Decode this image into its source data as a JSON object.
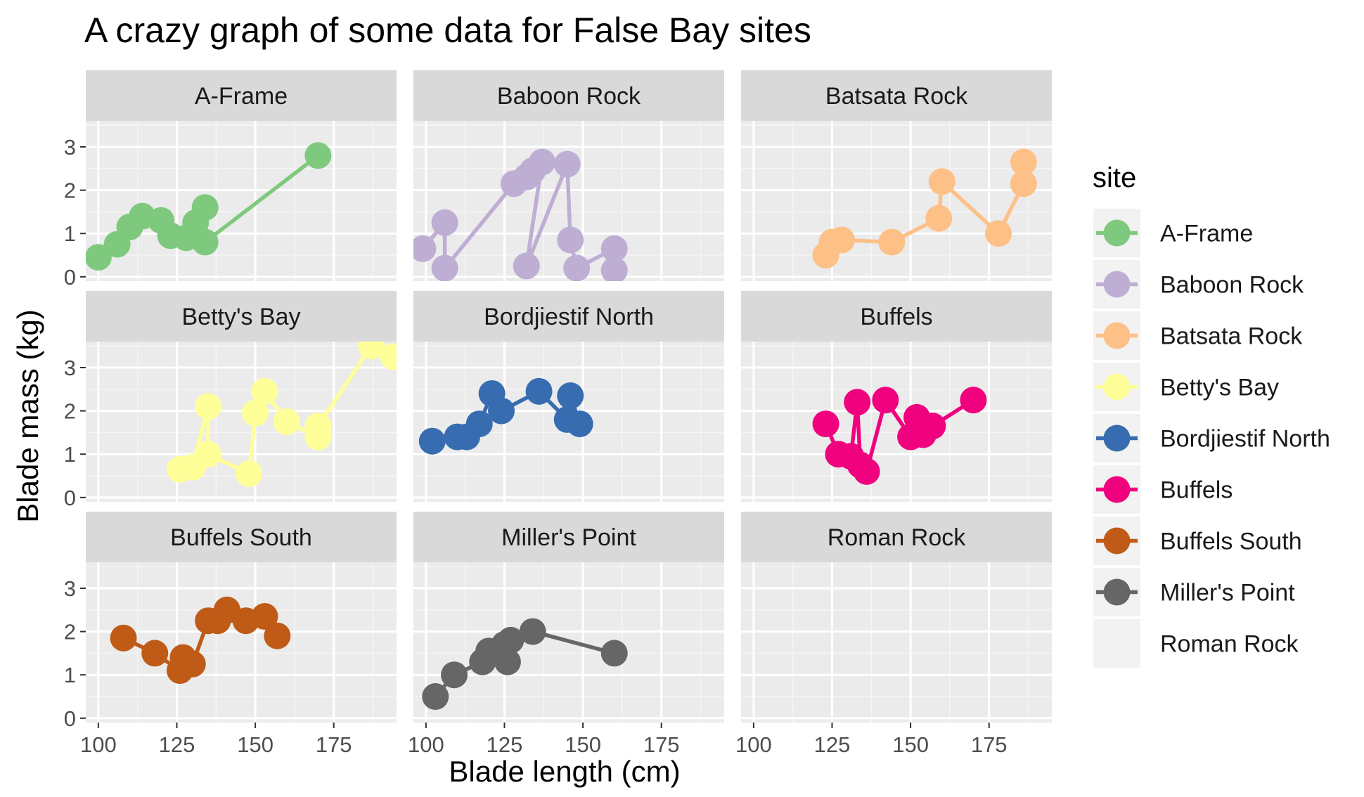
{
  "chart_data": {
    "type": "line",
    "title": "A crazy graph of some data for False Bay sites",
    "xlabel": "Blade length (cm)",
    "ylabel": "Blade mass (kg)",
    "xlim": [
      96,
      195
    ],
    "ylim": [
      -0.1,
      3.6
    ],
    "x_ticks": [
      100,
      125,
      150,
      175
    ],
    "y_ticks": [
      0,
      1,
      2,
      3
    ],
    "grid": true,
    "legend": {
      "title": "site",
      "position": "right"
    },
    "panels": [
      {
        "site": "A-Frame",
        "color": "#7fc97f",
        "points": [
          [
            100,
            0.45
          ],
          [
            106,
            0.75
          ],
          [
            110,
            1.15
          ],
          [
            114,
            1.4
          ],
          [
            120,
            1.3
          ],
          [
            123,
            0.95
          ],
          [
            128,
            0.9
          ],
          [
            131,
            1.25
          ],
          [
            134,
            1.6
          ],
          [
            134,
            0.8
          ],
          [
            170,
            2.8
          ]
        ]
      },
      {
        "site": "Baboon Rock",
        "color": "#beaed4",
        "points": [
          [
            99,
            0.65
          ],
          [
            106,
            1.25
          ],
          [
            106,
            0.2
          ],
          [
            128,
            2.15
          ],
          [
            132,
            2.3
          ],
          [
            134,
            2.45
          ],
          [
            137,
            2.65
          ],
          [
            132,
            0.25
          ],
          [
            145,
            2.6
          ],
          [
            146,
            0.85
          ],
          [
            148,
            0.2
          ],
          [
            160,
            0.65
          ],
          [
            160,
            0.15
          ]
        ]
      },
      {
        "site": "Batsata Rock",
        "color": "#fdc086",
        "points": [
          [
            123,
            0.5
          ],
          [
            125,
            0.8
          ],
          [
            128,
            0.85
          ],
          [
            144,
            0.8
          ],
          [
            159,
            1.35
          ],
          [
            160,
            2.2
          ],
          [
            178,
            1.0
          ],
          [
            186,
            2.15
          ],
          [
            186,
            2.65
          ]
        ]
      },
      {
        "site": "Betty's Bay",
        "color": "#ffff99",
        "points": [
          [
            126,
            0.65
          ],
          [
            130,
            0.7
          ],
          [
            135,
            2.1
          ],
          [
            135,
            1.0
          ],
          [
            148,
            0.55
          ],
          [
            150,
            1.95
          ],
          [
            153,
            2.45
          ],
          [
            160,
            1.75
          ],
          [
            170,
            1.4
          ],
          [
            170,
            1.65
          ],
          [
            187,
            3.5
          ],
          [
            194,
            3.25
          ]
        ]
      },
      {
        "site": "Bordjiestif North",
        "color": "#386cb0",
        "points": [
          [
            102,
            1.3
          ],
          [
            110,
            1.4
          ],
          [
            113,
            1.4
          ],
          [
            117,
            1.7
          ],
          [
            121,
            2.4
          ],
          [
            124,
            2.0
          ],
          [
            136,
            2.45
          ],
          [
            145,
            1.8
          ],
          [
            146,
            2.35
          ],
          [
            149,
            1.7
          ]
        ]
      },
      {
        "site": "Buffels",
        "color": "#f0027f",
        "points": [
          [
            123,
            1.7
          ],
          [
            127,
            1.0
          ],
          [
            131,
            0.95
          ],
          [
            133,
            2.2
          ],
          [
            134,
            0.75
          ],
          [
            136,
            0.6
          ],
          [
            142,
            2.25
          ],
          [
            150,
            1.4
          ],
          [
            152,
            1.85
          ],
          [
            154,
            1.45
          ],
          [
            157,
            1.65
          ],
          [
            170,
            2.25
          ]
        ]
      },
      {
        "site": "Buffels South",
        "color": "#bf5b17",
        "points": [
          [
            108,
            1.85
          ],
          [
            118,
            1.5
          ],
          [
            126,
            1.1
          ],
          [
            127,
            1.4
          ],
          [
            130,
            1.25
          ],
          [
            135,
            2.25
          ],
          [
            141,
            2.5
          ],
          [
            138,
            2.25
          ],
          [
            147,
            2.25
          ],
          [
            153,
            2.35
          ],
          [
            157,
            1.9
          ]
        ]
      },
      {
        "site": "Miller's Point",
        "color": "#666666",
        "points": [
          [
            103,
            0.5
          ],
          [
            109,
            1.0
          ],
          [
            118,
            1.3
          ],
          [
            120,
            1.55
          ],
          [
            125,
            1.7
          ],
          [
            126,
            1.3
          ],
          [
            127,
            1.8
          ],
          [
            134,
            2.0
          ],
          [
            160,
            1.5
          ]
        ]
      },
      {
        "site": "Roman Rock",
        "color": "#ebebeb",
        "points": []
      }
    ]
  }
}
